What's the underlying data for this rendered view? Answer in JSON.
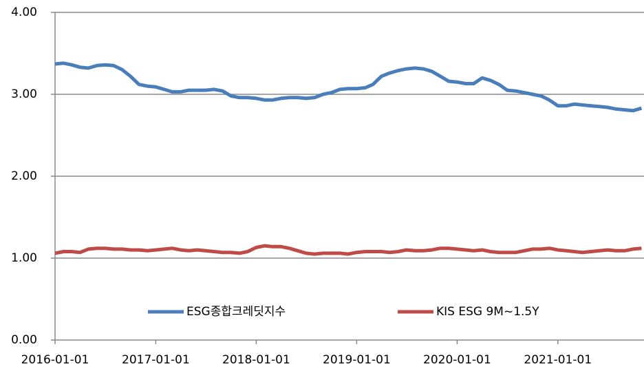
{
  "chart_data": {
    "type": "line",
    "x": [
      "2016-01-01",
      "2016-02-01",
      "2016-03-01",
      "2016-04-01",
      "2016-05-01",
      "2016-06-01",
      "2016-07-01",
      "2016-08-01",
      "2016-09-01",
      "2016-10-01",
      "2016-11-01",
      "2016-12-01",
      "2017-01-01",
      "2017-02-01",
      "2017-03-01",
      "2017-04-01",
      "2017-05-01",
      "2017-06-01",
      "2017-07-01",
      "2017-08-01",
      "2017-09-01",
      "2017-10-01",
      "2017-11-01",
      "2017-12-01",
      "2018-01-01",
      "2018-02-01",
      "2018-03-01",
      "2018-04-01",
      "2018-05-01",
      "2018-06-01",
      "2018-07-01",
      "2018-08-01",
      "2018-09-01",
      "2018-10-01",
      "2018-11-01",
      "2018-12-01",
      "2019-01-01",
      "2019-02-01",
      "2019-03-01",
      "2019-04-01",
      "2019-05-01",
      "2019-06-01",
      "2019-07-01",
      "2019-08-01",
      "2019-09-01",
      "2019-10-01",
      "2019-11-01",
      "2019-12-01",
      "2020-01-01",
      "2020-02-01",
      "2020-03-01",
      "2020-04-01",
      "2020-05-01",
      "2020-06-01",
      "2020-07-01",
      "2020-08-01",
      "2020-09-01",
      "2020-10-01",
      "2020-11-01",
      "2020-12-01",
      "2021-01-01",
      "2021-02-01",
      "2021-03-01",
      "2021-04-01",
      "2021-05-01",
      "2021-06-01",
      "2021-07-01",
      "2021-08-01",
      "2021-09-01",
      "2021-10-01",
      "2021-11-01"
    ],
    "series": [
      {
        "name": "ESG종합크레딧지수",
        "color": "#4a7ebb",
        "values": [
          3.37,
          3.38,
          3.36,
          3.33,
          3.32,
          3.35,
          3.36,
          3.35,
          3.3,
          3.22,
          3.12,
          3.1,
          3.09,
          3.06,
          3.03,
          3.03,
          3.05,
          3.05,
          3.05,
          3.06,
          3.04,
          2.98,
          2.96,
          2.96,
          2.95,
          2.93,
          2.93,
          2.95,
          2.96,
          2.96,
          2.95,
          2.96,
          3.0,
          3.02,
          3.06,
          3.07,
          3.07,
          3.08,
          3.12,
          3.22,
          3.26,
          3.29,
          3.31,
          3.32,
          3.31,
          3.28,
          3.22,
          3.16,
          3.15,
          3.13,
          3.13,
          3.2,
          3.17,
          3.12,
          3.05,
          3.04,
          3.02,
          3.0,
          2.98,
          2.93,
          2.86,
          2.86,
          2.88,
          2.87,
          2.86,
          2.85,
          2.84,
          2.82,
          2.81,
          2.8,
          2.83
        ]
      },
      {
        "name": "KIS ESG 9M~1.5Y",
        "color": "#be4b48",
        "values": [
          1.06,
          1.08,
          1.08,
          1.07,
          1.11,
          1.12,
          1.12,
          1.11,
          1.11,
          1.1,
          1.1,
          1.09,
          1.1,
          1.11,
          1.12,
          1.1,
          1.09,
          1.1,
          1.09,
          1.08,
          1.07,
          1.07,
          1.06,
          1.08,
          1.13,
          1.15,
          1.14,
          1.14,
          1.12,
          1.09,
          1.06,
          1.05,
          1.06,
          1.06,
          1.06,
          1.05,
          1.07,
          1.08,
          1.08,
          1.08,
          1.07,
          1.08,
          1.1,
          1.09,
          1.09,
          1.1,
          1.12,
          1.12,
          1.11,
          1.1,
          1.09,
          1.1,
          1.08,
          1.07,
          1.07,
          1.07,
          1.09,
          1.11,
          1.11,
          1.12,
          1.1,
          1.09,
          1.08,
          1.07,
          1.08,
          1.09,
          1.1,
          1.09,
          1.09,
          1.11,
          1.12
        ]
      }
    ],
    "xlim": [
      "2016-01-01",
      "2021-11-10"
    ],
    "xticks": [
      "2016-01-01",
      "2017-01-01",
      "2018-01-01",
      "2019-01-01",
      "2020-01-01",
      "2021-01-01"
    ],
    "ylim": [
      0,
      4
    ],
    "yticks": [
      {
        "value": 0,
        "label": "0.00"
      },
      {
        "value": 1,
        "label": "1.00"
      },
      {
        "value": 2,
        "label": "2.00"
      },
      {
        "value": 3,
        "label": "3.00"
      },
      {
        "value": 4,
        "label": "4.00"
      }
    ],
    "grid": true,
    "legend": "bottom"
  }
}
